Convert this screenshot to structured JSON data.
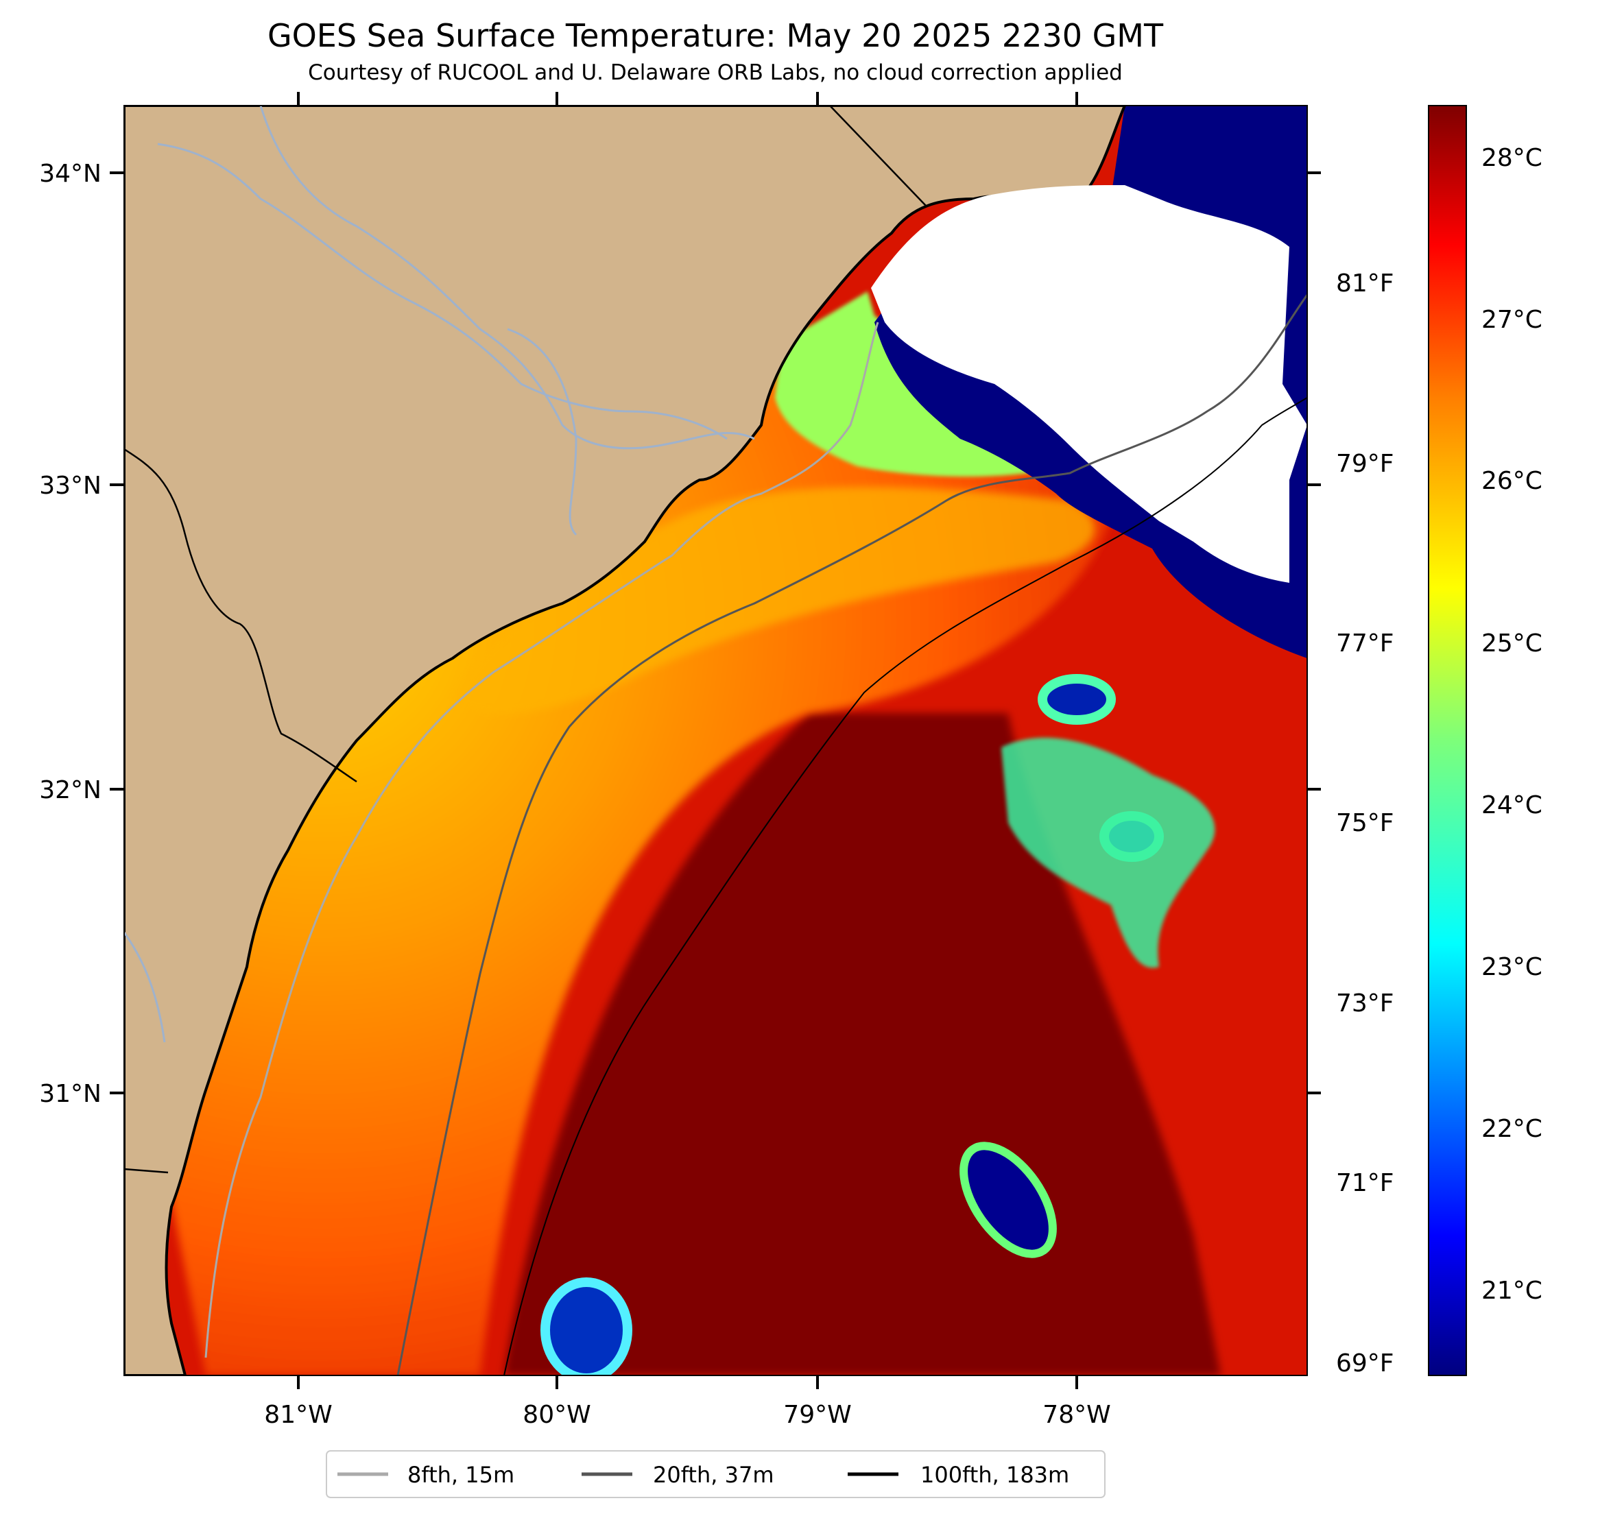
{
  "title": "GOES Sea Surface Temperature: May 20 2025 2230 GMT",
  "subtitle": "Courtesy of RUCOOL and U. Delaware ORB Labs, no cloud correction applied",
  "map": {
    "lat_ticks": [
      "34°N",
      "33°N",
      "32°N",
      "31°N"
    ],
    "lon_ticks": [
      "81°W",
      "80°W",
      "79°W",
      "78°W"
    ],
    "extent": {
      "lon_min": -81.67,
      "lon_max": -77.12,
      "lat_min": 30.1,
      "lat_max": 34.23
    },
    "colors": {
      "land": "#d2b48c",
      "no_data": "#ffffff",
      "coast": "#000000",
      "rivers": "#9fb2cc",
      "state_lines": "#000000"
    }
  },
  "colorbar": {
    "celsius_labels": [
      "28°C",
      "27°C",
      "26°C",
      "25°C",
      "24°C",
      "23°C",
      "22°C",
      "21°C"
    ],
    "fahrenheit_labels": [
      "81°F",
      "79°F",
      "77°F",
      "75°F",
      "73°F",
      "71°F",
      "69°F"
    ],
    "colormap": "jet",
    "celsius_range": [
      20.5,
      28.3
    ]
  },
  "legend": {
    "items": [
      {
        "label": "8fth, 15m",
        "color": "#aaaaaa"
      },
      {
        "label": "20fth, 37m",
        "color": "#555555"
      },
      {
        "label": "100fth, 183m",
        "color": "#000000"
      }
    ]
  }
}
